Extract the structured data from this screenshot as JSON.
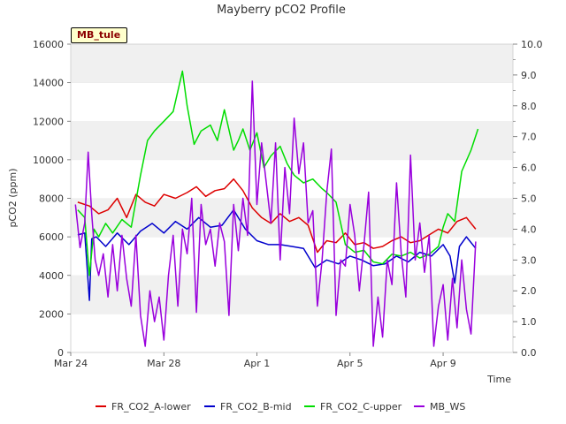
{
  "chart_data": {
    "type": "line",
    "title": "Mayberry pCO2 Profile",
    "xlabel": "Time",
    "ylabel": "pCO2 (ppm)",
    "badge": "MB_tule",
    "x_domain_days": [
      0,
      19
    ],
    "x_ticks": [
      {
        "day": 0,
        "label": "Mar 24"
      },
      {
        "day": 4,
        "label": "Mar 28"
      },
      {
        "day": 8,
        "label": "Apr 1"
      },
      {
        "day": 12,
        "label": "Apr 5"
      },
      {
        "day": 16,
        "label": "Apr 9"
      }
    ],
    "ylim": [
      0,
      16000
    ],
    "y_ticks": [
      "0",
      "2000",
      "4000",
      "6000",
      "8000",
      "10000",
      "12000",
      "14000",
      "16000"
    ],
    "y2lim": [
      0,
      10
    ],
    "y2_ticks": [
      "0.0",
      "1.0",
      "2.0",
      "3.0",
      "4.0",
      "5.0",
      "6.0",
      "7.0",
      "8.0",
      "9.0",
      "10.0"
    ],
    "grid": "horizontal bands",
    "legend_position": "bottom",
    "series": [
      {
        "name": "FR_CO2_A-lower",
        "color": "#dd0000",
        "axis": "left",
        "x": [
          0.3,
          0.8,
          1.2,
          1.6,
          2.0,
          2.4,
          2.8,
          3.2,
          3.6,
          4.0,
          4.5,
          5.0,
          5.4,
          5.8,
          6.2,
          6.6,
          7.0,
          7.4,
          7.8,
          8.2,
          8.6,
          9.0,
          9.4,
          9.8,
          10.2,
          10.6,
          11.0,
          11.4,
          11.8,
          12.2,
          12.6,
          13.0,
          13.4,
          13.8,
          14.2,
          14.6,
          15.0,
          15.4,
          15.8,
          16.2,
          16.6,
          17.0,
          17.4
        ],
        "values": [
          7800,
          7600,
          7200,
          7400,
          8000,
          7000,
          8200,
          7800,
          7600,
          8200,
          8000,
          8300,
          8600,
          8100,
          8400,
          8500,
          9000,
          8400,
          7500,
          7000,
          6700,
          7200,
          6800,
          7000,
          6600,
          5200,
          5800,
          5700,
          6200,
          5600,
          5700,
          5400,
          5500,
          5800,
          6000,
          5700,
          5800,
          6100,
          6400,
          6200,
          6800,
          7000,
          6400
        ]
      },
      {
        "name": "FR_CO2_B-mid",
        "color": "#0000cc",
        "axis": "left",
        "x": [
          0.3,
          0.6,
          0.8,
          0.9,
          1.1,
          1.5,
          2.0,
          2.5,
          3.0,
          3.5,
          4.0,
          4.5,
          5.0,
          5.5,
          6.0,
          6.5,
          7.0,
          7.5,
          8.0,
          8.5,
          9.0,
          9.5,
          10.0,
          10.5,
          11.0,
          11.5,
          12.0,
          12.5,
          13.0,
          13.5,
          14.0,
          14.5,
          15.0,
          15.5,
          16.0,
          16.3,
          16.5,
          16.7,
          17.0,
          17.4
        ],
        "values": [
          6100,
          6200,
          2700,
          5900,
          6000,
          5500,
          6200,
          5600,
          6300,
          6700,
          6200,
          6800,
          6400,
          7000,
          6500,
          6600,
          7400,
          6400,
          5800,
          5600,
          5600,
          5500,
          5400,
          4400,
          4800,
          4600,
          5000,
          4800,
          4500,
          4600,
          5000,
          4700,
          5200,
          5000,
          5600,
          5000,
          3600,
          5500,
          6000,
          5400
        ]
      },
      {
        "name": "FR_CO2_C-upper",
        "color": "#00dd00",
        "axis": "left",
        "x": [
          0.3,
          0.6,
          0.8,
          1.0,
          1.2,
          1.5,
          1.8,
          2.2,
          2.6,
          3.0,
          3.3,
          3.6,
          4.0,
          4.4,
          4.8,
          5.0,
          5.3,
          5.6,
          6.0,
          6.3,
          6.6,
          7.0,
          7.2,
          7.4,
          7.7,
          8.0,
          8.3,
          8.6,
          9.0,
          9.3,
          9.6,
          10.0,
          10.4,
          10.8,
          11.0,
          11.4,
          11.8,
          12.2,
          12.6,
          13.0,
          13.4,
          13.8,
          14.2,
          14.6,
          15.0,
          15.4,
          15.8,
          16.0,
          16.2,
          16.5,
          16.8,
          17.2,
          17.5
        ],
        "values": [
          7400,
          7000,
          4000,
          6400,
          6000,
          6700,
          6200,
          6900,
          6500,
          9200,
          11000,
          11500,
          12000,
          12500,
          14600,
          12800,
          10800,
          11500,
          11800,
          11000,
          12600,
          10500,
          11000,
          11600,
          10500,
          11400,
          9600,
          10200,
          10700,
          9800,
          9200,
          8800,
          9000,
          8500,
          8300,
          7800,
          5600,
          5200,
          5300,
          4700,
          4600,
          5100,
          5000,
          5200,
          4900,
          5100,
          5500,
          6500,
          7200,
          6800,
          9400,
          10500,
          11600
        ]
      },
      {
        "name": "MB_WS",
        "color": "#9900dd",
        "axis": "right",
        "x": [
          0.2,
          0.4,
          0.6,
          0.75,
          0.9,
          1.05,
          1.2,
          1.4,
          1.6,
          1.8,
          2.0,
          2.2,
          2.4,
          2.6,
          2.8,
          3.0,
          3.2,
          3.4,
          3.6,
          3.8,
          4.0,
          4.2,
          4.4,
          4.6,
          4.8,
          5.0,
          5.2,
          5.4,
          5.6,
          5.8,
          6.0,
          6.2,
          6.4,
          6.6,
          6.8,
          7.0,
          7.2,
          7.4,
          7.6,
          7.8,
          8.0,
          8.2,
          8.4,
          8.6,
          8.8,
          9.0,
          9.2,
          9.4,
          9.6,
          9.8,
          10.0,
          10.2,
          10.4,
          10.6,
          10.8,
          11.0,
          11.2,
          11.4,
          11.6,
          11.8,
          12.0,
          12.2,
          12.4,
          12.6,
          12.8,
          13.0,
          13.2,
          13.4,
          13.6,
          13.8,
          14.0,
          14.2,
          14.4,
          14.6,
          14.8,
          15.0,
          15.2,
          15.4,
          15.6,
          15.8,
          16.0,
          16.2,
          16.4,
          16.6,
          16.8,
          17.0,
          17.2,
          17.4
        ],
        "values": [
          4.8,
          3.4,
          4.2,
          6.5,
          4.5,
          3.0,
          2.5,
          3.2,
          1.8,
          3.5,
          2.0,
          3.8,
          2.4,
          1.5,
          3.8,
          1.2,
          0.2,
          2.0,
          1.0,
          1.8,
          0.4,
          2.5,
          3.8,
          1.5,
          4.0,
          3.2,
          5.0,
          1.3,
          4.8,
          3.5,
          4.0,
          2.8,
          4.2,
          3.6,
          1.2,
          4.8,
          3.3,
          5.0,
          3.8,
          8.8,
          4.8,
          6.8,
          5.5,
          4.2,
          6.8,
          3.0,
          6.0,
          4.5,
          7.6,
          5.8,
          6.8,
          4.2,
          4.6,
          1.5,
          3.0,
          5.2,
          6.6,
          1.2,
          3.0,
          2.8,
          4.8,
          3.8,
          2.0,
          3.5,
          5.2,
          0.2,
          1.8,
          0.5,
          3.0,
          2.2,
          5.5,
          3.2,
          1.8,
          6.4,
          3.0,
          4.2,
          2.6,
          3.8,
          0.2,
          1.5,
          2.2,
          0.4,
          2.4,
          0.8,
          3.0,
          1.4,
          0.6,
          3.6
        ]
      }
    ]
  }
}
